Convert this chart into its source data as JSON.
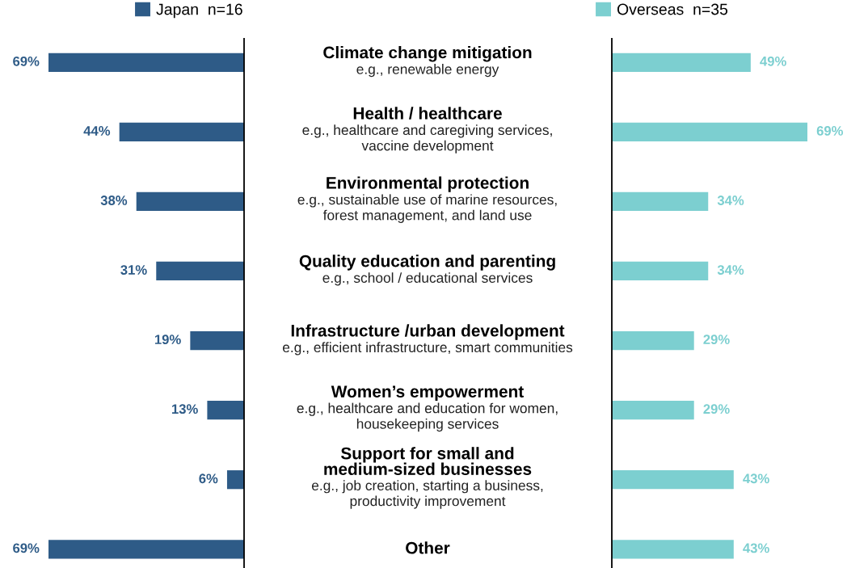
{
  "chart_data": [
    {
      "type": "bar",
      "orientation": "horizontal",
      "categories": [
        "Climate change mitigation",
        "Health / healthcare",
        "Environmental protection",
        "Quality education and parenting",
        "Infrastructure /urban development",
        "Women’s empowerment",
        "Support for small and\nmedium-sized businesses",
        "Other"
      ],
      "series": [
        {
          "name": "Japan  n=16",
          "color": "#2e5b87",
          "values": [
            69,
            44,
            38,
            31,
            19,
            13,
            6,
            69
          ],
          "value_labels": [
            "69%",
            "44%",
            "38%",
            "31%",
            "19%",
            "13%",
            "6%",
            "69%"
          ]
        }
      ],
      "annotations": [
        "e.g., renewable energy",
        "e.g., healthcare and caregiving services,\nvaccine development",
        "e.g., sustainable use of marine resources,\nforest management, and land use",
        "e.g., school / educational services",
        "e.g., efficient infrastructure, smart communities",
        "e.g., healthcare and education for women,\nhousekeeping services",
        "e.g., job creation, starting a business,\nproductivity improvement"
      ],
      "legend": "top"
    },
    {
      "type": "bar",
      "orientation": "horizontal",
      "categories": [
        null,
        null,
        null,
        null,
        null,
        null,
        null,
        null
      ],
      "series": [
        {
          "name": "Overseas  n=35",
          "color": "#7ccfd0",
          "values": [
            49,
            69,
            34,
            34,
            29,
            29,
            43,
            43
          ],
          "value_labels": [
            "49%",
            "69%",
            "34%",
            "34%",
            "29%",
            "29%",
            "43%",
            "43%"
          ]
        }
      ],
      "legend": "top"
    }
  ]
}
